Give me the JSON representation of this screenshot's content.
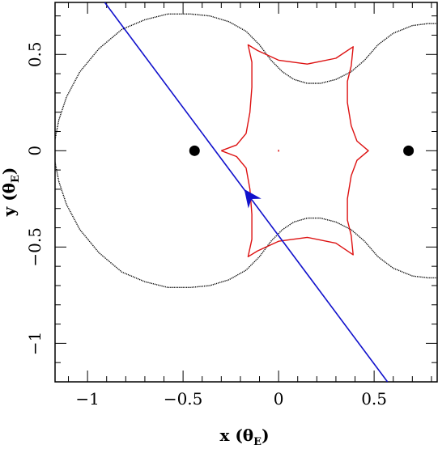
{
  "chart_data": {
    "type": "line",
    "title": "",
    "xlabel": "x (θ_E)",
    "ylabel": "y (θ_E)",
    "xlabel_parts": {
      "main": "x (θ",
      "sub": "E",
      "close": ")"
    },
    "ylabel_parts": {
      "main": "y (θ",
      "sub": "E",
      "close": ")"
    },
    "xlim": [
      -1.17,
      0.83
    ],
    "ylim": [
      -1.2,
      0.77
    ],
    "x_ticks": [
      {
        "value": -1,
        "label": "−1"
      },
      {
        "value": -0.5,
        "label": "−0.5"
      },
      {
        "value": 0,
        "label": "0"
      },
      {
        "value": 0.5,
        "label": "0.5"
      }
    ],
    "y_ticks": [
      {
        "value": -1,
        "label": "−1"
      },
      {
        "value": -0.5,
        "label": "−0.5"
      },
      {
        "value": 0,
        "label": "0"
      },
      {
        "value": 0.5,
        "label": "0.5"
      }
    ],
    "minor_tick_step": 0.1,
    "grid": false,
    "lenses": [
      {
        "x": -0.44,
        "y": 0.0
      },
      {
        "x": 0.68,
        "y": 0.0
      }
    ],
    "critical_curves": {
      "color": "#000000",
      "style": "dotted-dense",
      "curves": [
        [
          [
            0.84,
            0.66
          ],
          [
            0.78,
            0.66
          ],
          [
            0.7,
            0.65
          ],
          [
            0.6,
            0.61
          ],
          [
            0.52,
            0.55
          ],
          [
            0.45,
            0.47
          ],
          [
            0.38,
            0.41
          ],
          [
            0.3,
            0.37
          ],
          [
            0.22,
            0.35
          ],
          [
            0.15,
            0.35
          ],
          [
            0.08,
            0.37
          ],
          [
            0.02,
            0.41
          ],
          [
            -0.04,
            0.47
          ],
          [
            -0.1,
            0.55
          ],
          [
            -0.17,
            0.62
          ],
          [
            -0.26,
            0.67
          ],
          [
            -0.36,
            0.7
          ],
          [
            -0.46,
            0.71
          ],
          [
            -0.58,
            0.71
          ],
          [
            -0.7,
            0.68
          ],
          [
            -0.82,
            0.63
          ],
          [
            -0.94,
            0.53
          ],
          [
            -1.04,
            0.41
          ],
          [
            -1.11,
            0.28
          ],
          [
            -1.15,
            0.16
          ],
          [
            -1.17,
            0.06
          ]
        ],
        [
          [
            0.84,
            -0.66
          ],
          [
            0.78,
            -0.66
          ],
          [
            0.7,
            -0.65
          ],
          [
            0.6,
            -0.61
          ],
          [
            0.52,
            -0.55
          ],
          [
            0.45,
            -0.47
          ],
          [
            0.38,
            -0.41
          ],
          [
            0.3,
            -0.37
          ],
          [
            0.22,
            -0.35
          ],
          [
            0.15,
            -0.35
          ],
          [
            0.08,
            -0.37
          ],
          [
            0.02,
            -0.41
          ],
          [
            -0.04,
            -0.47
          ],
          [
            -0.1,
            -0.55
          ],
          [
            -0.17,
            -0.62
          ],
          [
            -0.26,
            -0.67
          ],
          [
            -0.36,
            -0.7
          ],
          [
            -0.46,
            -0.71
          ],
          [
            -0.58,
            -0.71
          ],
          [
            -0.7,
            -0.68
          ],
          [
            -0.82,
            -0.63
          ],
          [
            -0.94,
            -0.53
          ],
          [
            -1.04,
            -0.41
          ],
          [
            -1.11,
            -0.28
          ],
          [
            -1.15,
            -0.16
          ],
          [
            -1.17,
            -0.06
          ]
        ]
      ]
    },
    "caustics": {
      "color": "#dd1111",
      "curves": [
        [
          [
            -0.3,
            0.0
          ],
          [
            -0.22,
            0.03
          ],
          [
            -0.17,
            0.09
          ],
          [
            -0.15,
            0.2
          ],
          [
            -0.14,
            0.33
          ],
          [
            -0.14,
            0.46
          ],
          [
            -0.16,
            0.55
          ],
          [
            -0.11,
            0.52
          ],
          [
            0.0,
            0.47
          ],
          [
            0.15,
            0.45
          ],
          [
            0.3,
            0.48
          ],
          [
            0.39,
            0.54
          ],
          [
            0.38,
            0.44
          ],
          [
            0.36,
            0.36
          ],
          [
            0.36,
            0.25
          ],
          [
            0.38,
            0.13
          ],
          [
            0.41,
            0.05
          ],
          [
            0.47,
            0.0
          ],
          [
            0.41,
            -0.05
          ],
          [
            0.38,
            -0.13
          ],
          [
            0.36,
            -0.25
          ],
          [
            0.36,
            -0.36
          ],
          [
            0.38,
            -0.44
          ],
          [
            0.39,
            -0.54
          ],
          [
            0.3,
            -0.48
          ],
          [
            0.15,
            -0.45
          ],
          [
            0.0,
            -0.47
          ],
          [
            -0.11,
            -0.52
          ],
          [
            -0.16,
            -0.55
          ],
          [
            -0.14,
            -0.46
          ],
          [
            -0.14,
            -0.33
          ],
          [
            -0.15,
            -0.2
          ],
          [
            -0.17,
            -0.09
          ],
          [
            -0.22,
            -0.03
          ],
          [
            -0.3,
            0.0
          ]
        ],
        [
          [
            0.0,
            0.005
          ],
          [
            0.0,
            -0.005
          ]
        ]
      ]
    },
    "source_trajectory": {
      "color": "#1111cc",
      "start": [
        -0.91,
        0.77
      ],
      "end": [
        0.57,
        -1.2
      ],
      "arrow_at": [
        -0.18,
        -0.2
      ],
      "arrow_direction": [
        -1.48,
        1.97
      ]
    }
  }
}
